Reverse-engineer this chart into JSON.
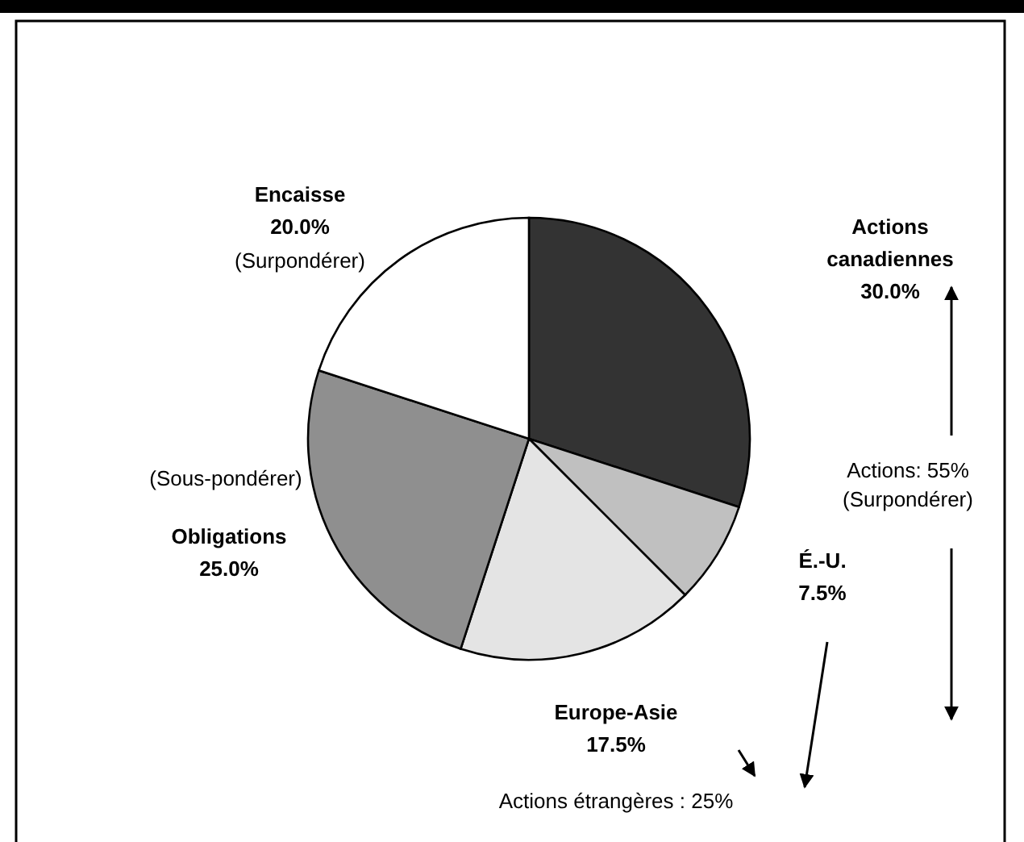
{
  "chart_data": {
    "type": "pie",
    "categories": [
      "Actions canadiennes",
      "É.-U.",
      "Europe-Asie",
      "Obligations",
      "Encaisse"
    ],
    "values": [
      30,
      7.5,
      17.5,
      25,
      20
    ],
    "value_labels": [
      "30.0%",
      "7.5%",
      "17.5%",
      "25.0%",
      "20.0%"
    ],
    "colors": [
      "#333333",
      "#c0c0c0",
      "#e4e4e4",
      "#8f8f8f",
      "#ffffff"
    ],
    "annotations": [
      "(Surpondérer)",
      "(Sous-pondérer)",
      "Actions: 55%\n(Surpondérer)",
      "Actions étrangères : 25%"
    ]
  }
}
